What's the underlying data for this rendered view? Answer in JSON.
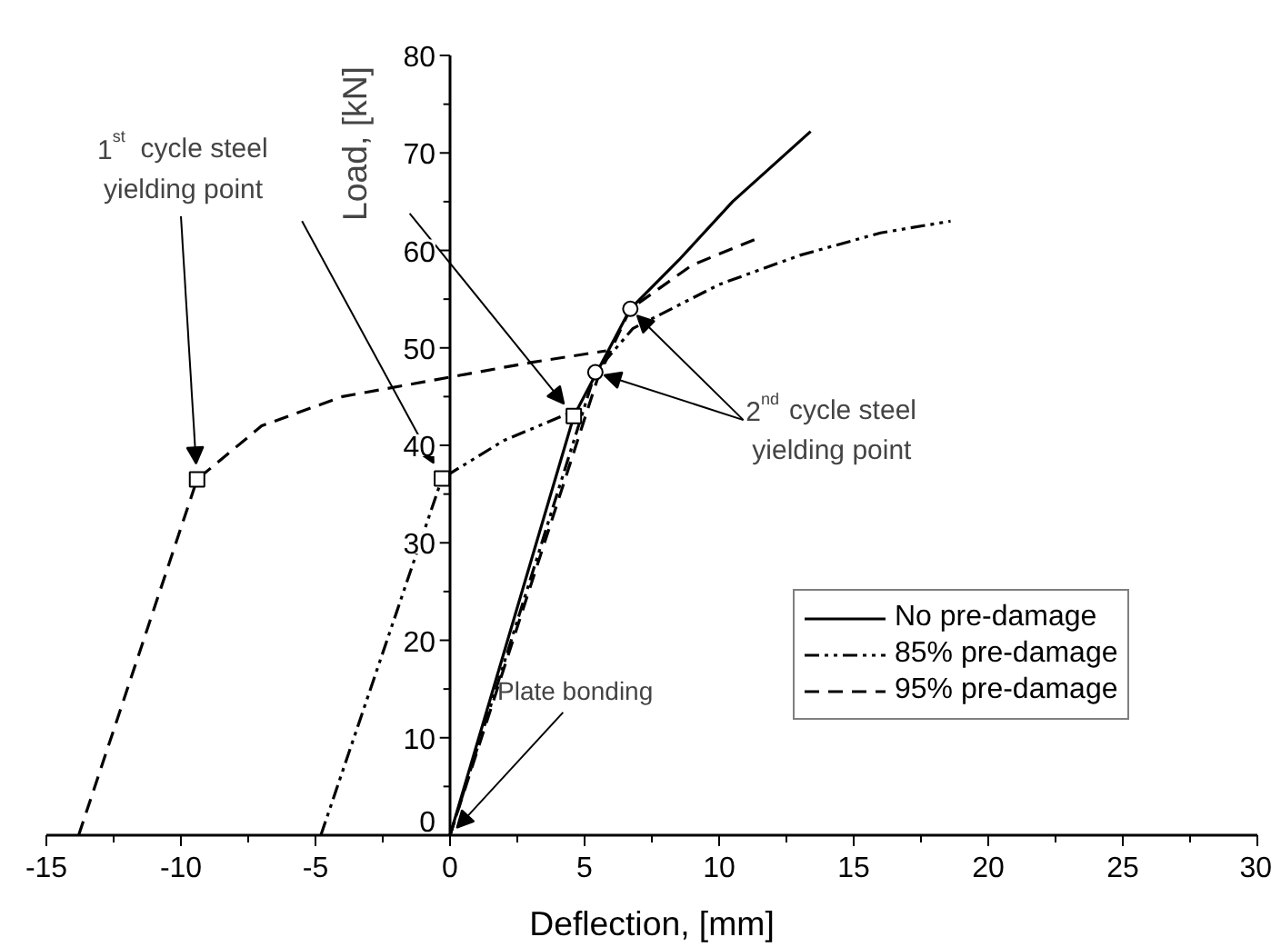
{
  "chart_data": {
    "type": "line",
    "xlabel": "Deflection, [mm]",
    "ylabel": "Load, [kN]",
    "xlim": [
      -15,
      30
    ],
    "ylim": [
      0,
      80
    ],
    "xticks": [
      -15,
      -10,
      -5,
      0,
      5,
      10,
      15,
      20,
      25,
      30
    ],
    "yticks": [
      0,
      10,
      20,
      30,
      40,
      50,
      60,
      70,
      80
    ],
    "grid": false,
    "legend": "right",
    "series": [
      {
        "name": "No pre-damage",
        "color": "#000000",
        "line_style": "solid",
        "x": [
          0,
          4.6,
          6.7,
          8.5,
          10.5,
          13.4
        ],
        "values": [
          0,
          43,
          54,
          59,
          65,
          72.2
        ]
      },
      {
        "name": "85% pre-damage",
        "color": "#000000",
        "line_style": "dashdot",
        "x": [
          -4.8,
          -0.3,
          2,
          4.6,
          null,
          0,
          5.4,
          6.8,
          10,
          13,
          16,
          18.6
        ],
        "values": [
          0,
          36.6,
          40.5,
          43.5,
          null,
          0,
          47.5,
          52,
          56.5,
          59.5,
          61.8,
          63
        ]
      },
      {
        "name": "95% pre-damage",
        "color": "#000000",
        "line_style": "dashed",
        "x": [
          -13.8,
          -9.4,
          -7,
          -4,
          0,
          3,
          5.8,
          null,
          0,
          5.5,
          6.7,
          9,
          11.4
        ],
        "values": [
          0,
          36.5,
          42,
          45,
          47,
          48.5,
          49.7,
          null,
          0,
          47,
          54,
          58.5,
          61.2
        ]
      },
      {
        "type": "scatter",
        "marker": "square",
        "color": "#000000",
        "x": [
          -9.4,
          -0.3,
          4.6
        ],
        "values": [
          36.5,
          36.6,
          43
        ]
      },
      {
        "type": "scatter",
        "marker": "circle",
        "color": "#000000",
        "x": [
          5.4,
          6.7
        ],
        "values": [
          47.5,
          54
        ]
      }
    ],
    "annotations": [
      "1$^{st}$ cycle steel yielding point",
      {
        "text": "2$^{nd}$ cycle steel yielding point",
        "x": 5.4,
        "y": 47.5
      },
      {
        "text": "Plate bonding",
        "x": 0,
        "y": 0
      }
    ]
  }
}
